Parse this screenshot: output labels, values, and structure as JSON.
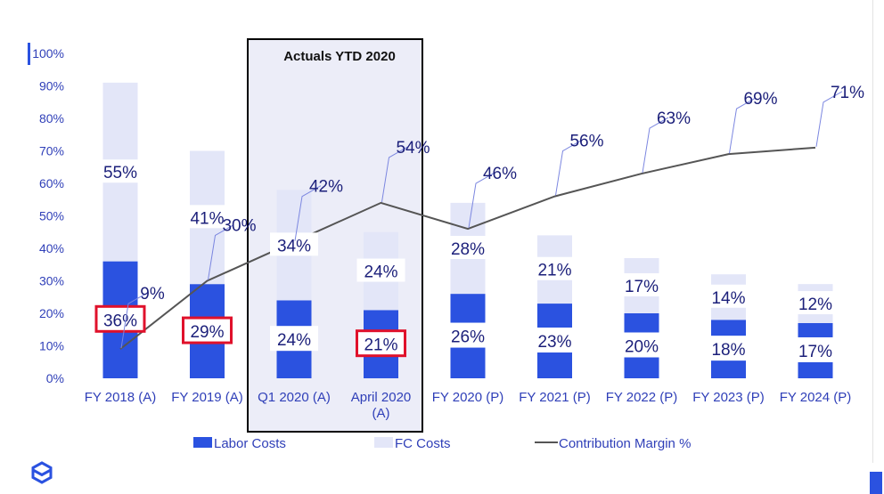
{
  "chart_data": {
    "type": "bar",
    "title": "",
    "categories": [
      "FY 2018 (A)",
      "FY 2019 (A)",
      "Q1 2020 (A)",
      "April 2020 (A)",
      "FY 2020 (P)",
      "FY 2021 (P)",
      "FY 2022 (P)",
      "FY 2023 (P)",
      "FY 2024 (P)"
    ],
    "stacked": true,
    "ylim": [
      0,
      100
    ],
    "yticks": [
      "0%",
      "10%",
      "20%",
      "30%",
      "40%",
      "50%",
      "60%",
      "70%",
      "80%",
      "90%",
      "100%"
    ],
    "series": [
      {
        "name": "Labor Costs",
        "type": "bar",
        "color": "#2b52e0",
        "values": [
          36,
          29,
          24,
          21,
          26,
          23,
          20,
          18,
          17
        ],
        "labels": [
          "36%",
          "29%",
          "24%",
          "21%",
          "26%",
          "23%",
          "20%",
          "18%",
          "17%"
        ]
      },
      {
        "name": "FC Costs",
        "type": "bar",
        "color": "#e3e6f8",
        "values": [
          55,
          41,
          34,
          24,
          28,
          21,
          17,
          14,
          12
        ],
        "labels": [
          "55%",
          "41%",
          "34%",
          "24%",
          "28%",
          "21%",
          "17%",
          "14%",
          "12%"
        ]
      },
      {
        "name": "Contribution Margin %",
        "type": "line",
        "color": "#555555",
        "values": [
          9,
          30,
          42,
          54,
          46,
          56,
          63,
          69,
          71
        ],
        "labels": [
          "9%",
          "30%",
          "42%",
          "54%",
          "46%",
          "56%",
          "63%",
          "69%",
          "71%"
        ]
      }
    ],
    "highlighted_labels": [
      "FY 2018 (A)",
      "FY 2019 (A)",
      "April 2020 (A)"
    ],
    "annotation": {
      "text": "Actuals YTD 2020",
      "covers": [
        "Q1 2020 (A)",
        "April 2020 (A)"
      ]
    },
    "legend": {
      "position": "bottom",
      "entries": [
        "Labor Costs",
        "FC Costs",
        "Contribution Margin %"
      ]
    },
    "colors": {
      "labor": "#2b52e0",
      "fc": "#e3e6f8",
      "line": "#555555",
      "highlight": "#e0112b",
      "annotation_fill": "#ecedf8"
    }
  }
}
